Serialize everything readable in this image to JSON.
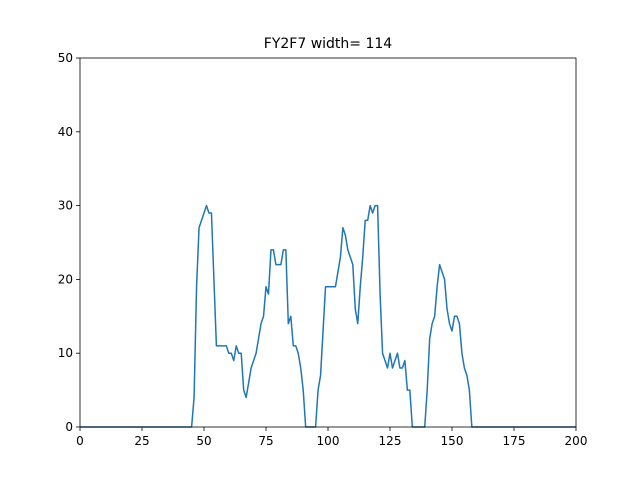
{
  "chart_data": {
    "type": "line",
    "title": "FY2F7 width= 114",
    "x": [
      0,
      45,
      46,
      47,
      48,
      49,
      50,
      51,
      52,
      53,
      54,
      55,
      56,
      57,
      58,
      59,
      60,
      61,
      62,
      63,
      64,
      65,
      66,
      67,
      68,
      69,
      70,
      71,
      72,
      73,
      74,
      75,
      76,
      77,
      78,
      79,
      80,
      81,
      82,
      83,
      84,
      85,
      86,
      87,
      88,
      89,
      90,
      91,
      95,
      96,
      97,
      98,
      99,
      100,
      101,
      102,
      103,
      104,
      105,
      106,
      107,
      108,
      109,
      110,
      111,
      112,
      113,
      114,
      115,
      116,
      117,
      118,
      119,
      120,
      121,
      122,
      123,
      124,
      125,
      126,
      127,
      128,
      129,
      130,
      131,
      132,
      133,
      134,
      139,
      140,
      141,
      142,
      143,
      144,
      145,
      146,
      147,
      148,
      149,
      150,
      151,
      152,
      153,
      154,
      155,
      156,
      157,
      158,
      200
    ],
    "series": [
      {
        "color": "#1f77b4",
        "values": [
          0,
          0,
          4,
          19,
          27,
          28,
          29,
          30,
          29,
          29,
          20,
          11,
          11,
          11,
          11,
          11,
          10,
          10,
          9,
          11,
          10,
          10,
          5,
          4,
          6,
          8,
          9,
          10,
          12,
          14,
          15,
          19,
          18,
          24,
          24,
          22,
          22,
          22,
          24,
          24,
          14,
          15,
          11,
          11,
          10,
          8,
          5,
          0,
          0,
          5,
          7,
          13,
          19,
          19,
          19,
          19,
          19,
          21,
          23,
          27,
          26,
          24,
          23,
          22,
          16,
          14,
          19,
          23,
          28,
          28,
          30,
          29,
          30,
          30,
          18,
          10,
          9,
          8,
          10,
          8,
          9,
          10,
          8,
          8,
          9,
          5,
          5,
          0,
          0,
          5,
          12,
          14,
          15,
          19,
          22,
          21,
          20,
          16,
          14,
          13,
          15,
          15,
          14,
          10,
          8,
          7,
          5,
          0,
          0
        ]
      }
    ],
    "xlim": [
      0,
      200
    ],
    "ylim": [
      0,
      50
    ],
    "xticks": [
      0,
      25,
      50,
      75,
      100,
      125,
      150,
      175,
      200
    ],
    "yticks": [
      0,
      10,
      20,
      30,
      40,
      50
    ],
    "grid": false
  }
}
